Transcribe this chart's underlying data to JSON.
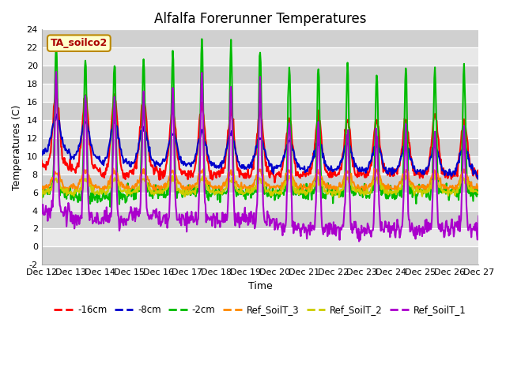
{
  "title": "Alfalfa Forerunner Temperatures",
  "ylabel": "Temperatures (C)",
  "xlabel": "Time",
  "annotation": "TA_soilco2",
  "ylim": [
    -2,
    24
  ],
  "yticks": [
    -2,
    0,
    2,
    4,
    6,
    8,
    10,
    12,
    14,
    16,
    18,
    20,
    22,
    24
  ],
  "series": {
    "-16cm": {
      "color": "#ff0000",
      "linewidth": 1.5
    },
    "-8cm": {
      "color": "#0000cc",
      "linewidth": 1.5
    },
    "-2cm": {
      "color": "#00bb00",
      "linewidth": 1.5
    },
    "Ref_SoilT_3": {
      "color": "#ff8800",
      "linewidth": 1.5
    },
    "Ref_SoilT_2": {
      "color": "#cccc00",
      "linewidth": 1.5
    },
    "Ref_SoilT_1": {
      "color": "#aa00cc",
      "linewidth": 1.5
    }
  },
  "title_fontsize": 12,
  "axis_fontsize": 9,
  "tick_fontsize": 8,
  "legend_fontsize": 8.5,
  "n_days": 15,
  "start_day": 12,
  "ppd": 48
}
